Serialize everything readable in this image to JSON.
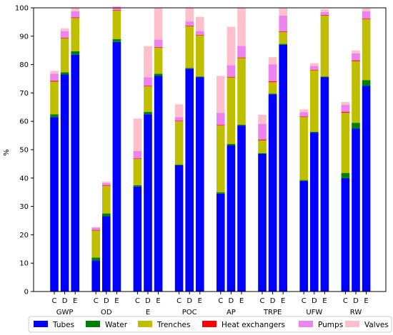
{
  "chart_data": {
    "type": "bar",
    "stacked": true,
    "ylabel": "%",
    "ylim": [
      0,
      100
    ],
    "yticks": [
      0,
      10,
      20,
      30,
      40,
      50,
      60,
      70,
      80,
      90,
      100
    ],
    "groups": [
      "GWP",
      "OD",
      "E",
      "POC",
      "AP",
      "TRPE",
      "UFW",
      "RW"
    ],
    "subcategories": [
      "C",
      "D",
      "E"
    ],
    "grid": false,
    "legend_position": "bottom",
    "series": [
      {
        "name": "Tubes",
        "color": "#0000ff",
        "values": [
          61.5,
          76.5,
          83.5,
          11.0,
          26.5,
          88.0,
          37.0,
          62.5,
          76.0,
          44.5,
          78.5,
          75.5,
          34.5,
          51.5,
          58.5,
          48.5,
          69.5,
          87.0,
          39.0,
          56.0,
          75.5,
          40.0,
          57.5,
          72.5
        ]
      },
      {
        "name": "Water",
        "color": "#008000",
        "values": [
          1.0,
          0.8,
          1.2,
          1.0,
          1.0,
          1.0,
          0.5,
          0.8,
          0.8,
          0.3,
          0.3,
          0.3,
          0.5,
          0.5,
          0.3,
          0.3,
          0.3,
          0.3,
          0.3,
          0.3,
          0.3,
          1.8,
          2.0,
          2.0
        ]
      },
      {
        "name": "Trenches",
        "color": "#bfbf00",
        "values": [
          11.5,
          12.0,
          11.7,
          9.5,
          9.7,
          10.0,
          9.2,
          9.0,
          9.2,
          15.2,
          14.7,
          14.5,
          23.5,
          23.5,
          23.5,
          4.5,
          4.0,
          4.2,
          22.2,
          21.7,
          21.5,
          21.2,
          21.7,
          21.5
        ]
      },
      {
        "name": "Heat exchangers",
        "color": "#ff0000",
        "values": [
          0.3,
          0.2,
          0.2,
          0.2,
          0.2,
          0.2,
          0.2,
          0.2,
          0.2,
          0.2,
          0.2,
          0.2,
          0.2,
          0.2,
          0.2,
          0.3,
          0.3,
          0.2,
          0.2,
          0.2,
          0.2,
          0.3,
          0.3,
          0.2
        ]
      },
      {
        "name": "Pumps",
        "color": "#ee82ee",
        "values": [
          2.5,
          2.3,
          2.2,
          0.8,
          0.8,
          0.8,
          2.6,
          3.0,
          2.6,
          1.3,
          1.5,
          1.3,
          4.3,
          4.1,
          4.1,
          5.5,
          6.0,
          5.6,
          1.5,
          1.3,
          1.0,
          2.5,
          2.5,
          2.6
        ]
      },
      {
        "name": "Valves",
        "color": "#ffc0cb",
        "values": [
          1.0,
          1.0,
          1.2,
          0.2,
          0.5,
          0.5,
          11.5,
          11.0,
          11.2,
          4.5,
          4.8,
          5.0,
          13.0,
          13.5,
          13.4,
          3.2,
          2.5,
          2.7,
          1.0,
          1.0,
          1.0,
          1.0,
          1.0,
          1.0
        ]
      }
    ]
  }
}
